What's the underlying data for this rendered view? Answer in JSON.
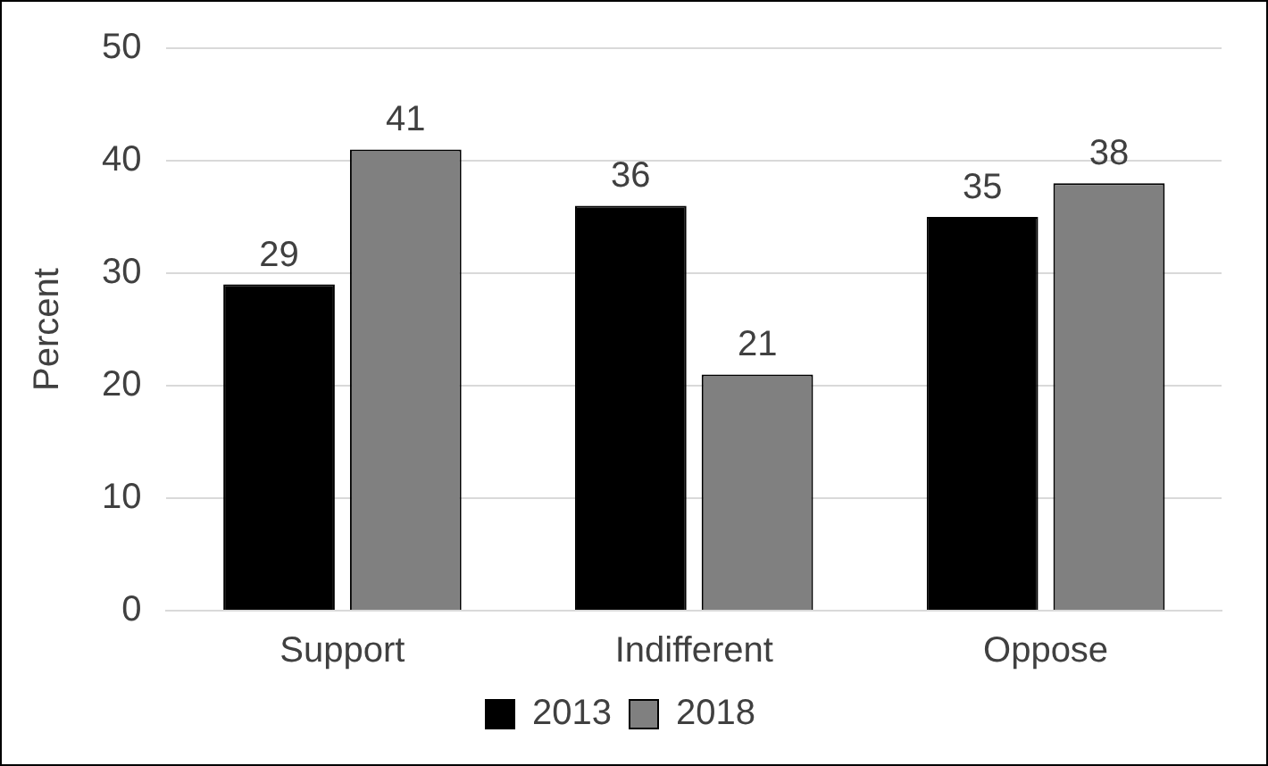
{
  "chart_data": {
    "type": "bar",
    "ylabel": "Percent",
    "categories": [
      "Support",
      "Indifferent",
      "Oppose"
    ],
    "series": [
      {
        "name": "2013",
        "color": "#000000",
        "values": [
          29,
          36,
          35
        ]
      },
      {
        "name": "2018",
        "color": "#808080",
        "values": [
          41,
          21,
          38
        ]
      }
    ],
    "ylim": [
      0,
      50
    ],
    "yticks": [
      0,
      10,
      20,
      30,
      40,
      50
    ],
    "grid": "y",
    "legend": "bottom",
    "data_labels": true
  }
}
